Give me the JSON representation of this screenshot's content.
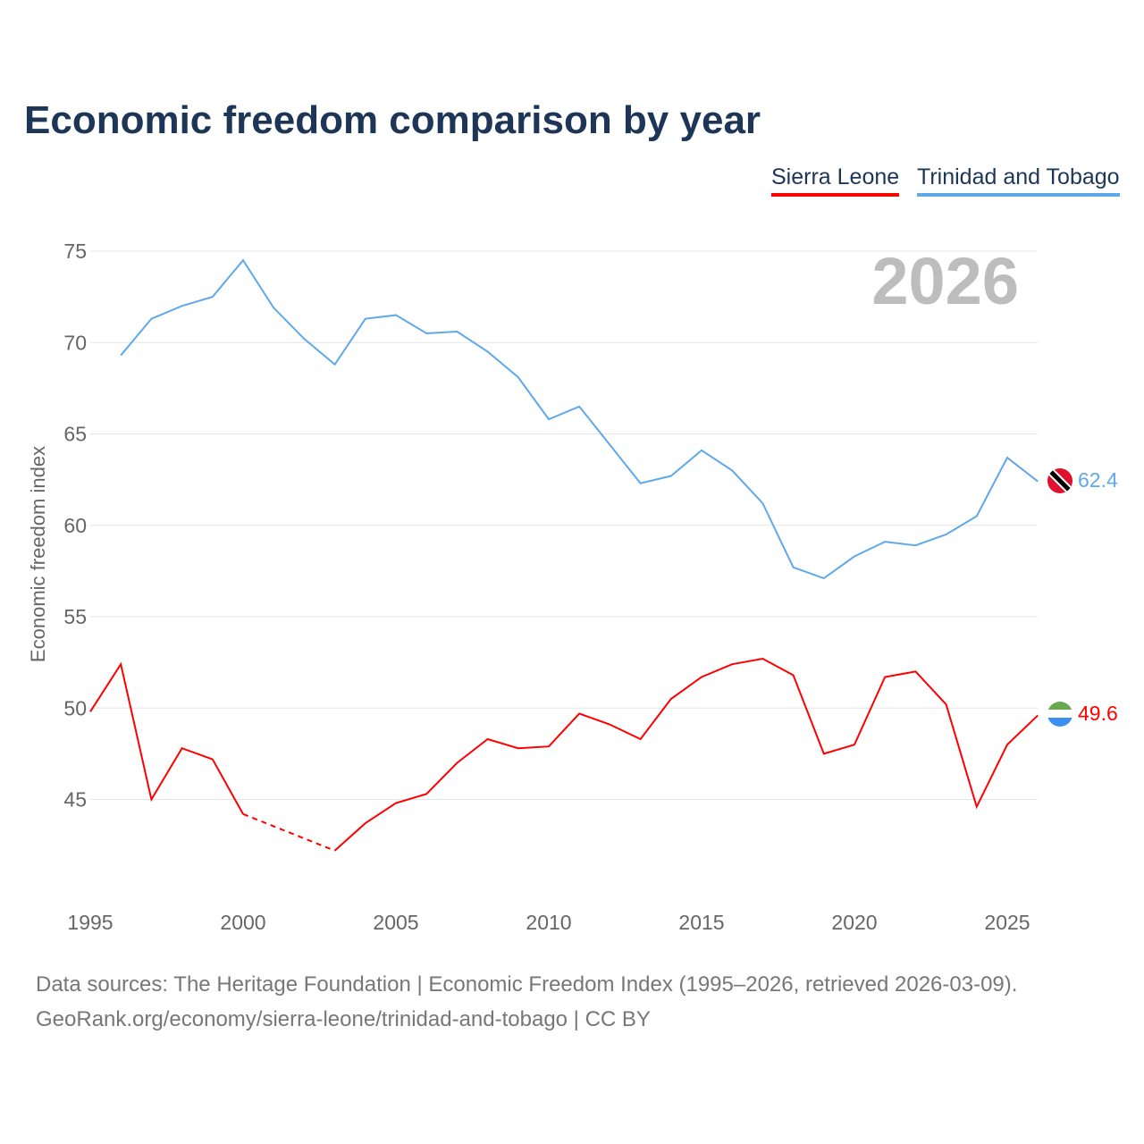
{
  "title": "Economic freedom comparison by year",
  "legend": [
    "Sierra Leone",
    "Trinidad and Tobago"
  ],
  "footer": {
    "line1": "Data sources: The Heritage Foundation | Economic Freedom Index (1995–2026, retrieved 2026-03-09).",
    "line2": "GeoRank.org/economy/sierra-leone/trinidad-and-tobago | CC BY"
  },
  "chart_data": {
    "type": "line",
    "title": "Economic freedom comparison by year",
    "ylabel": "Economic freedom index",
    "xlabel": "",
    "year_label": "2026",
    "x": [
      1995,
      1996,
      1997,
      1998,
      1999,
      2000,
      2001,
      2002,
      2003,
      2004,
      2005,
      2006,
      2007,
      2008,
      2009,
      2010,
      2011,
      2012,
      2013,
      2014,
      2015,
      2016,
      2017,
      2018,
      2019,
      2020,
      2021,
      2022,
      2023,
      2024,
      2025,
      2026
    ],
    "xticks": [
      1995,
      2000,
      2005,
      2010,
      2015,
      2020,
      2025
    ],
    "yticks": [
      45,
      50,
      55,
      60,
      65,
      70,
      75
    ],
    "xlim": [
      1995,
      2026
    ],
    "ylim": [
      41,
      76
    ],
    "grid": true,
    "series": [
      {
        "name": "Sierra Leone",
        "color": "#ff0000",
        "end_label": "49.6",
        "values": [
          49.8,
          52.4,
          45.0,
          47.8,
          47.2,
          44.2,
          null,
          null,
          42.2,
          43.7,
          44.8,
          45.3,
          47.0,
          48.3,
          47.8,
          47.9,
          49.7,
          49.1,
          48.3,
          50.5,
          51.7,
          52.4,
          52.7,
          51.8,
          47.5,
          48.0,
          51.7,
          52.0,
          50.2,
          44.6,
          48.0,
          49.6
        ]
      },
      {
        "name": "Trinidad and Tobago",
        "color": "#5fa8ea",
        "end_label": "62.4",
        "values": [
          null,
          69.3,
          71.3,
          72.0,
          72.5,
          74.5,
          71.9,
          70.2,
          68.8,
          71.3,
          71.5,
          70.5,
          70.6,
          69.5,
          68.1,
          65.8,
          66.5,
          64.4,
          62.3,
          62.7,
          64.1,
          63.0,
          61.2,
          57.7,
          57.1,
          58.3,
          59.1,
          58.9,
          59.5,
          60.5,
          63.7,
          62.4
        ]
      }
    ]
  }
}
